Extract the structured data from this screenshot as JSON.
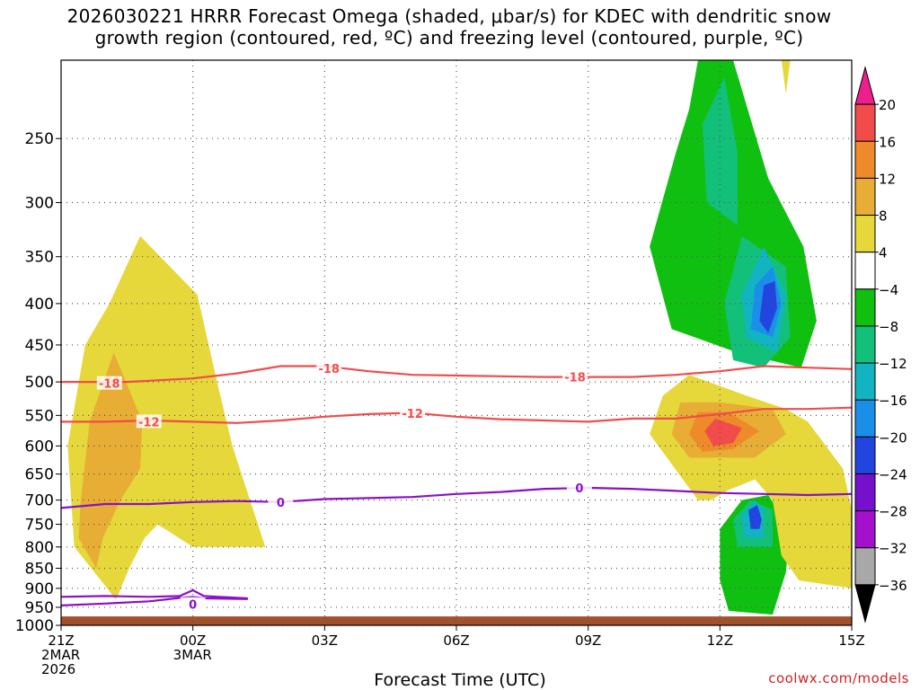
{
  "title_line1": "2026030221 HRRR Forecast Omega (shaded, μbar/s) for KDEC with dendritic snow",
  "title_line2": "growth region (contoured, red, ºC) and freezing level (contoured, purple, ºC)",
  "credit": "coolwx.com/models",
  "chart_data": {
    "type": "heatmap",
    "xlabel": "Forecast Time (UTC)",
    "ylabel": "",
    "x_ticks": [
      {
        "hour": 0,
        "lines": [
          "21Z",
          "2MAR",
          "2026"
        ]
      },
      {
        "hour": 3,
        "lines": [
          "00Z",
          "3MAR"
        ]
      },
      {
        "hour": 6,
        "lines": [
          "03Z"
        ]
      },
      {
        "hour": 9,
        "lines": [
          "06Z"
        ]
      },
      {
        "hour": 12,
        "lines": [
          "09Z"
        ]
      },
      {
        "hour": 15,
        "lines": [
          "12Z"
        ]
      },
      {
        "hour": 18,
        "lines": [
          "15Z"
        ]
      }
    ],
    "xlim": [
      0,
      18
    ],
    "y_scale": "log",
    "y_reversed": true,
    "ylim": [
      1000,
      200
    ],
    "y_ticks": [
      250,
      300,
      350,
      400,
      450,
      500,
      550,
      600,
      650,
      700,
      750,
      800,
      850,
      900,
      950,
      1000
    ],
    "grid": true,
    "colorbar": {
      "labels": [
        "20",
        "16",
        "12",
        "8",
        "4",
        "−4",
        "−8",
        "−12",
        "−16",
        "−20",
        "−24",
        "−28",
        "−32",
        "−36"
      ],
      "colors": [
        "#ee1f8c",
        "#f24b4b",
        "#ef8a2a",
        "#e7ad34",
        "#e6d73a",
        "#ffffff",
        "#10c010",
        "#12c07a",
        "#12b4c2",
        "#1a8fe8",
        "#2245e0",
        "#7710cc",
        "#a410cc",
        "#a8a8a8",
        "#000000"
      ]
    },
    "omega_regions": [
      {
        "level": "4",
        "color": "#e6d73a",
        "points": [
          [
            1.25,
            930
          ],
          [
            1.05,
            900
          ],
          [
            0.3,
            800
          ],
          [
            0.15,
            600
          ],
          [
            0.55,
            450
          ],
          [
            1.1,
            400
          ],
          [
            1.8,
            330
          ],
          [
            3.1,
            390
          ],
          [
            3.55,
            500
          ],
          [
            3.9,
            600
          ],
          [
            4.3,
            700
          ],
          [
            4.65,
            800
          ],
          [
            3.0,
            800
          ],
          [
            2.2,
            750
          ],
          [
            1.9,
            780
          ],
          [
            1.55,
            850
          ]
        ]
      },
      {
        "level": "8",
        "color": "#e7ad34",
        "points": [
          [
            0.8,
            850
          ],
          [
            0.4,
            780
          ],
          [
            0.45,
            700
          ],
          [
            0.65,
            560
          ],
          [
            1.2,
            460
          ],
          [
            1.85,
            560
          ],
          [
            1.8,
            640
          ],
          [
            1.35,
            700
          ],
          [
            0.95,
            780
          ]
        ]
      },
      {
        "level": "-4",
        "color": "#10c010",
        "points": [
          [
            13.9,
            430
          ],
          [
            13.4,
            340
          ],
          [
            14.0,
            260
          ],
          [
            14.3,
            230
          ],
          [
            14.5,
            200
          ],
          [
            15.3,
            200
          ],
          [
            16.1,
            280
          ],
          [
            16.9,
            340
          ],
          [
            17.2,
            420
          ],
          [
            16.85,
            480
          ],
          [
            15.4,
            460
          ]
        ]
      },
      {
        "level": "-8",
        "color": "#12c07a",
        "points": [
          [
            14.7,
            300
          ],
          [
            14.6,
            240
          ],
          [
            15.1,
            210
          ],
          [
            15.4,
            260
          ],
          [
            15.4,
            320
          ]
        ]
      },
      {
        "level": "-8",
        "color": "#12c07a",
        "points": [
          [
            15.3,
            470
          ],
          [
            15.1,
            400
          ],
          [
            15.5,
            330
          ],
          [
            16.5,
            360
          ],
          [
            16.6,
            440
          ],
          [
            16.0,
            480
          ]
        ]
      },
      {
        "level": "-12",
        "color": "#12b4c2",
        "points": [
          [
            15.6,
            440
          ],
          [
            15.5,
            390
          ],
          [
            16.0,
            340
          ],
          [
            16.5,
            390
          ],
          [
            16.3,
            460
          ]
        ]
      },
      {
        "level": "-16",
        "color": "#1a8fe8",
        "points": [
          [
            15.7,
            430
          ],
          [
            15.8,
            380
          ],
          [
            16.2,
            360
          ],
          [
            16.4,
            400
          ],
          [
            16.2,
            440
          ]
        ]
      },
      {
        "level": "-24",
        "color": "#2245e0",
        "points": [
          [
            15.9,
            420
          ],
          [
            16.0,
            380
          ],
          [
            16.25,
            375
          ],
          [
            16.3,
            405
          ],
          [
            16.1,
            435
          ]
        ]
      },
      {
        "level": "-8",
        "color": "#10c010",
        "points": [
          [
            15.2,
            960
          ],
          [
            15.0,
            880
          ],
          [
            15.0,
            760
          ],
          [
            15.5,
            700
          ],
          [
            16.1,
            690
          ],
          [
            16.6,
            760
          ],
          [
            16.5,
            860
          ],
          [
            16.2,
            970
          ]
        ]
      },
      {
        "level": "-8",
        "color": "#12c07a",
        "points": [
          [
            15.4,
            800
          ],
          [
            15.3,
            740
          ],
          [
            15.7,
            700
          ],
          [
            16.2,
            720
          ],
          [
            16.2,
            800
          ]
        ]
      },
      {
        "level": "-12",
        "color": "#12b4c2",
        "points": [
          [
            15.55,
            780
          ],
          [
            15.5,
            730
          ],
          [
            15.8,
            700
          ],
          [
            16.0,
            720
          ],
          [
            16.0,
            780
          ]
        ]
      },
      {
        "level": "-20",
        "color": "#2245e0",
        "points": [
          [
            15.7,
            760
          ],
          [
            15.65,
            720
          ],
          [
            15.85,
            710
          ],
          [
            15.95,
            740
          ],
          [
            15.9,
            760
          ]
        ]
      },
      {
        "level": "4",
        "color": "#e6d73a",
        "points": [
          [
            14.5,
            700
          ],
          [
            13.4,
            580
          ],
          [
            13.7,
            520
          ],
          [
            14.3,
            490
          ],
          [
            15.6,
            520
          ],
          [
            16.5,
            540
          ],
          [
            17.0,
            560
          ],
          [
            17.8,
            640
          ],
          [
            18.0,
            720
          ],
          [
            18.0,
            900
          ],
          [
            16.8,
            880
          ],
          [
            16.4,
            820
          ],
          [
            16.2,
            700
          ],
          [
            15.8,
            660
          ],
          [
            15.2,
            680
          ],
          [
            14.8,
            700
          ]
        ]
      },
      {
        "level": "8",
        "color": "#e7ad34",
        "points": [
          [
            14.3,
            620
          ],
          [
            13.9,
            580
          ],
          [
            14.1,
            530
          ],
          [
            15.0,
            530
          ],
          [
            16.2,
            540
          ],
          [
            16.5,
            580
          ],
          [
            15.8,
            620
          ],
          [
            15.0,
            620
          ]
        ]
      },
      {
        "level": "12",
        "color": "#ef8a2a",
        "points": [
          [
            14.6,
            610
          ],
          [
            14.3,
            580
          ],
          [
            14.5,
            545
          ],
          [
            15.2,
            545
          ],
          [
            15.9,
            575
          ],
          [
            15.3,
            605
          ]
        ]
      },
      {
        "level": "16",
        "color": "#f24b4b",
        "points": [
          [
            14.85,
            600
          ],
          [
            14.65,
            575
          ],
          [
            14.9,
            555
          ],
          [
            15.5,
            570
          ],
          [
            15.3,
            595
          ]
        ]
      },
      {
        "level": "4",
        "color": "#e6d73a",
        "points": [
          [
            16.4,
            200
          ],
          [
            16.6,
            200
          ],
          [
            16.55,
            210
          ],
          [
            16.5,
            220
          ]
        ]
      }
    ],
    "contours_18": {
      "label": "-18",
      "points": [
        [
          0,
          500
        ],
        [
          1.5,
          500
        ],
        [
          3,
          495
        ],
        [
          4,
          488
        ],
        [
          5,
          478
        ],
        [
          6,
          478
        ],
        [
          7,
          485
        ],
        [
          8,
          490
        ],
        [
          10,
          492
        ],
        [
          11,
          493
        ],
        [
          13,
          493
        ],
        [
          14,
          490
        ],
        [
          15,
          485
        ],
        [
          16,
          478
        ],
        [
          17,
          480
        ],
        [
          18,
          482
        ]
      ]
    },
    "contours_12": {
      "label": "-12",
      "points": [
        [
          0,
          560
        ],
        [
          1,
          560
        ],
        [
          2,
          558
        ],
        [
          3,
          560
        ],
        [
          4,
          562
        ],
        [
          5,
          558
        ],
        [
          6,
          552
        ],
        [
          7,
          548
        ],
        [
          8,
          546
        ],
        [
          9,
          552
        ],
        [
          10,
          556
        ],
        [
          11,
          558
        ],
        [
          12,
          560
        ],
        [
          13,
          555
        ],
        [
          14,
          555
        ],
        [
          15,
          548
        ],
        [
          16,
          540
        ],
        [
          17,
          540
        ],
        [
          18,
          538
        ]
      ]
    },
    "freezing_level": {
      "label": "0",
      "points": [
        [
          0,
          716
        ],
        [
          1,
          708
        ],
        [
          2,
          708
        ],
        [
          3,
          704
        ],
        [
          4,
          702
        ],
        [
          5,
          704
        ],
        [
          6,
          698
        ],
        [
          7,
          696
        ],
        [
          8,
          694
        ],
        [
          9,
          688
        ],
        [
          10,
          684
        ],
        [
          11,
          678
        ],
        [
          12,
          676
        ],
        [
          13,
          678
        ],
        [
          14,
          682
        ],
        [
          15,
          686
        ],
        [
          16,
          688
        ],
        [
          17,
          690
        ],
        [
          18,
          688
        ]
      ]
    },
    "freezing_level_lower": {
      "label": "0",
      "points": [
        [
          0,
          922
        ],
        [
          1,
          920
        ],
        [
          2,
          922
        ],
        [
          2.7,
          920
        ],
        [
          3.0,
          905
        ],
        [
          3.25,
          920
        ],
        [
          3.6,
          922
        ],
        [
          4.25,
          926
        ]
      ]
    },
    "freezing_level_lowest": {
      "label": "0",
      "points": [
        [
          0,
          945
        ],
        [
          1,
          940
        ],
        [
          2,
          934
        ],
        [
          2.7,
          925
        ],
        [
          3.0,
          922
        ],
        [
          3.3,
          926
        ],
        [
          4.25,
          928
        ]
      ]
    },
    "contour_labels": [
      {
        "text": "-18",
        "x": 1.1,
        "y": 502,
        "color": "#f24b4b"
      },
      {
        "text": "-18",
        "x": 6.1,
        "y": 481,
        "color": "#f24b4b"
      },
      {
        "text": "-18",
        "x": 11.7,
        "y": 493,
        "color": "#f24b4b"
      },
      {
        "text": "-12",
        "x": 2.0,
        "y": 560,
        "color": "#f24b4b"
      },
      {
        "text": "-12",
        "x": 8.0,
        "y": 547,
        "color": "#f24b4b"
      },
      {
        "text": "0",
        "x": 5.0,
        "y": 704,
        "color": "#8a10c8"
      },
      {
        "text": "0",
        "x": 11.8,
        "y": 676,
        "color": "#8a10c8"
      },
      {
        "text": "0",
        "x": 3.0,
        "y": 942,
        "color": "#8a10c8"
      }
    ]
  }
}
